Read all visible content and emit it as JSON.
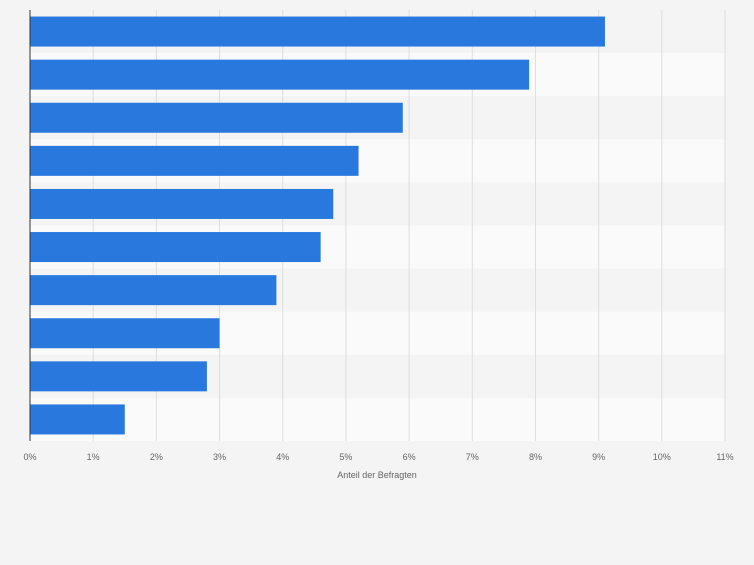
{
  "chart_data": {
    "type": "bar",
    "orientation": "horizontal",
    "categories": [
      "",
      "",
      "",
      "",
      "",
      "",
      "",
      "",
      "",
      ""
    ],
    "values": [
      9.1,
      7.9,
      5.9,
      5.2,
      4.8,
      4.6,
      3.9,
      3.0,
      2.8,
      1.5
    ],
    "xlabel": "Anteil der Befragten",
    "ylabel": "",
    "xlim": [
      0,
      11
    ],
    "x_ticks": [
      {
        "value": 0,
        "label": "0%"
      },
      {
        "value": 1,
        "label": "1%"
      },
      {
        "value": 2,
        "label": "2%"
      },
      {
        "value": 3,
        "label": "3%"
      },
      {
        "value": 4,
        "label": "4%"
      },
      {
        "value": 5,
        "label": "5%"
      },
      {
        "value": 6,
        "label": "6%"
      },
      {
        "value": 7,
        "label": "7%"
      },
      {
        "value": 8,
        "label": "8%"
      },
      {
        "value": 9,
        "label": "9%"
      },
      {
        "value": 10,
        "label": "10%"
      },
      {
        "value": 11,
        "label": "11%"
      }
    ],
    "grid": true,
    "legend": "none",
    "colors": {
      "bar": "#2878de",
      "band_dark": "#f4f4f4",
      "band_light": "#fafafa",
      "grid": "#dedede",
      "axis": "#333333",
      "tick_text": "#666666"
    }
  }
}
